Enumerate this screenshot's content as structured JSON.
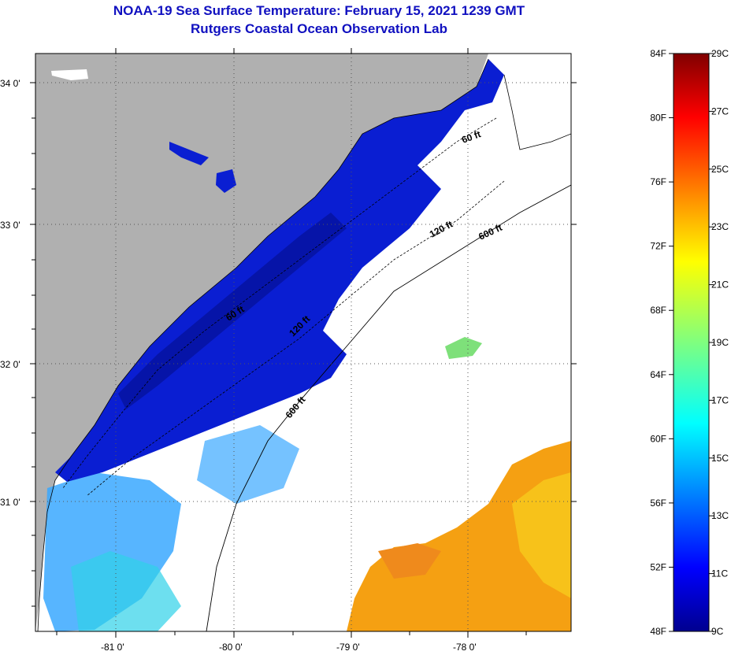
{
  "title": "NOAA-19 Sea Surface Temperature:  February 15, 2021 1239 GMT",
  "subtitle": "Rutgers Coastal Ocean Observation Lab",
  "map": {
    "lat_ticks": [
      "34 0'",
      "33 0'",
      "32 0'",
      "31 0'"
    ],
    "lon_ticks": [
      "-81 0'",
      "-80 0'",
      "-79 0'",
      "-78 0'"
    ],
    "contours": [
      "60 ft",
      "120 ft",
      "600 ft",
      "60 ft",
      "120 ft",
      "600 ft"
    ],
    "colors": {
      "land": "#b0b0b0",
      "cloud": "#ffffff",
      "cold": "#0a1ed2",
      "cool": "#2b7dff",
      "warm": "#f09a10"
    }
  },
  "colorbar": {
    "fahrenheit": [
      "84F",
      "80F",
      "76F",
      "72F",
      "68F",
      "64F",
      "60F",
      "56F",
      "52F",
      "48F"
    ],
    "celsius": [
      "29C",
      "27C",
      "25C",
      "23C",
      "21C",
      "19C",
      "17C",
      "15C",
      "13C",
      "11C",
      "9C"
    ],
    "range_c": [
      9,
      29
    ],
    "range_f": [
      48,
      84
    ]
  }
}
